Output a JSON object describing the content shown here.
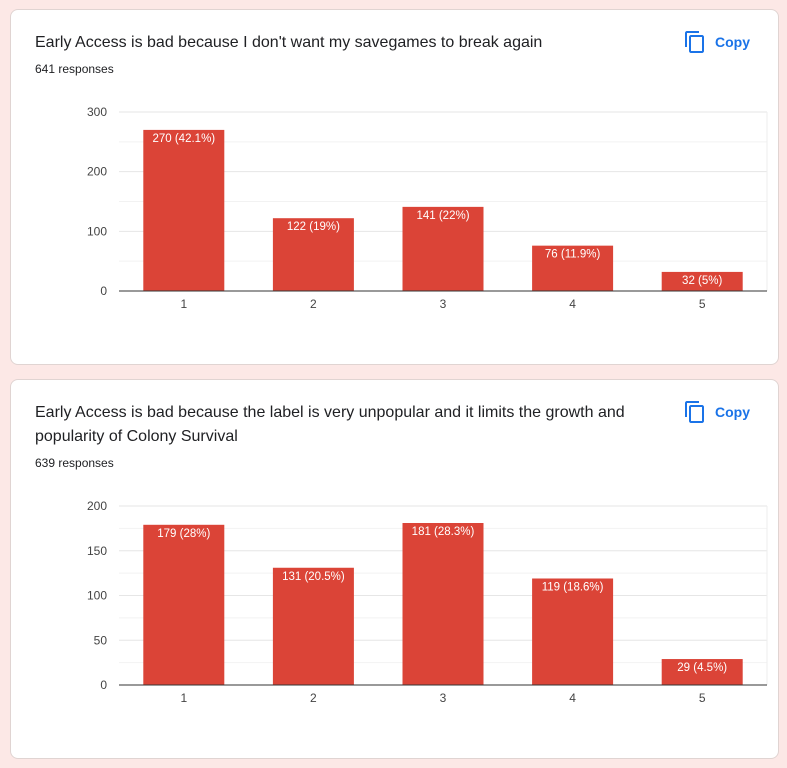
{
  "copy_label": "Copy",
  "colors": {
    "bar": "#db4437",
    "accent": "#1a73e8",
    "grid": "#e8e8e8",
    "axis": "#333333"
  },
  "chart_data": [
    {
      "type": "bar",
      "title": "Early Access is bad because I don't want my savegames to break again",
      "responses": "641 responses",
      "categories": [
        "1",
        "2",
        "3",
        "4",
        "5"
      ],
      "values": [
        270,
        122,
        141,
        76,
        32
      ],
      "bar_labels": [
        "270 (42.1%)",
        "122 (19%)",
        "141 (22%)",
        "76 (11.9%)",
        "32 (5%)"
      ],
      "yticks": [
        0,
        100,
        200,
        300
      ],
      "ylim": [
        0,
        300
      ],
      "xlabel": "",
      "ylabel": "",
      "grid": true
    },
    {
      "type": "bar",
      "title": "Early Access is bad because the label is very unpopular and it limits the growth and popularity of Colony Survival",
      "responses": "639 responses",
      "categories": [
        "1",
        "2",
        "3",
        "4",
        "5"
      ],
      "values": [
        179,
        131,
        181,
        119,
        29
      ],
      "bar_labels": [
        "179 (28%)",
        "131 (20.5%)",
        "181 (28.3%)",
        "119 (18.6%)",
        "29 (4.5%)"
      ],
      "yticks": [
        0,
        50,
        100,
        150,
        200
      ],
      "ylim": [
        0,
        200
      ],
      "xlabel": "",
      "ylabel": "",
      "grid": true
    }
  ]
}
